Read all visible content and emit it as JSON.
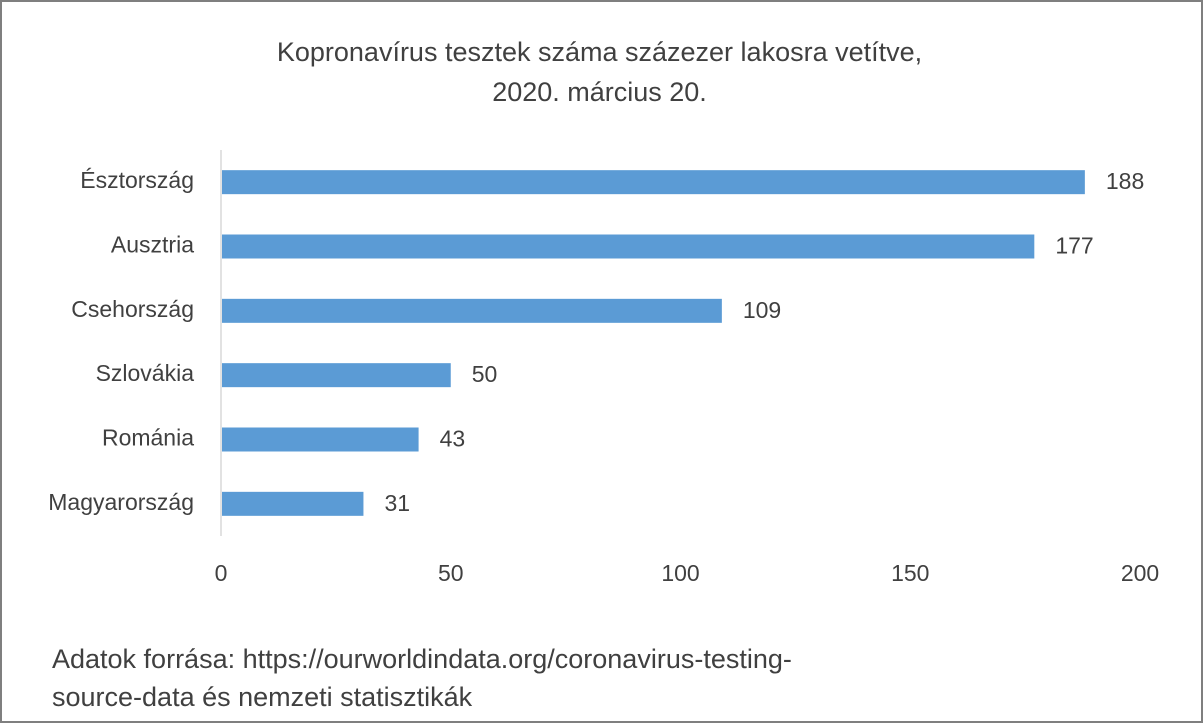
{
  "chart_data": {
    "type": "bar",
    "orientation": "horizontal",
    "title_line1": "Kopronavírus tesztek száma százezer lakosra vetítve,",
    "title_line2": "2020. március 20.",
    "categories": [
      "Észtország",
      "Ausztria",
      "Csehország",
      "Szlovákia",
      "Románia",
      "Magyarország"
    ],
    "values": [
      188,
      177,
      109,
      50,
      43,
      31
    ],
    "xlim": [
      0,
      200
    ],
    "x_ticks": [
      0,
      50,
      100,
      150,
      200
    ],
    "grid": false,
    "legend": "none",
    "bar_color": "#5b9bd5",
    "text_color": "#404040",
    "source_line1": "Adatok forrása: https://ourworldindata.org/coronavirus-testing-",
    "source_line2": "source-data és nemzeti statisztikák"
  }
}
